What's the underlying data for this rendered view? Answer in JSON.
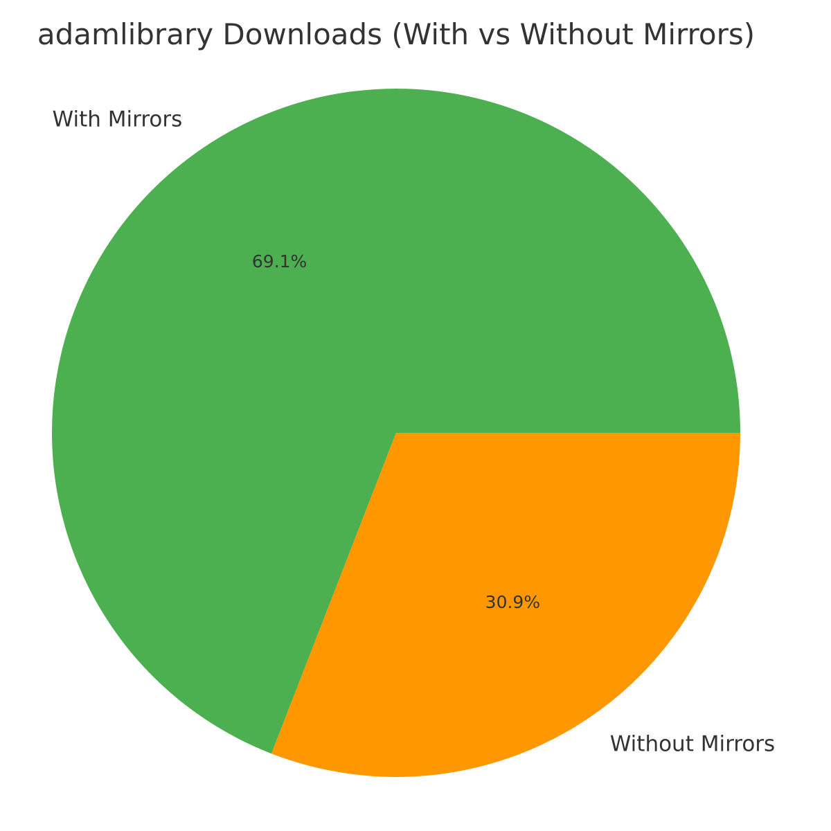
{
  "chart_data": {
    "type": "pie",
    "title": "adamlibrary Downloads (With vs Without Mirrors)",
    "categories": [
      "With Mirrors",
      "Without Mirrors"
    ],
    "values": [
      69.1,
      30.9
    ],
    "percent_labels": [
      "69.1%",
      "30.9%"
    ],
    "colors": [
      "#4caf50",
      "#ff9800"
    ],
    "start_angle_deg": 0,
    "direction": "counterclockwise",
    "legend": "none"
  }
}
